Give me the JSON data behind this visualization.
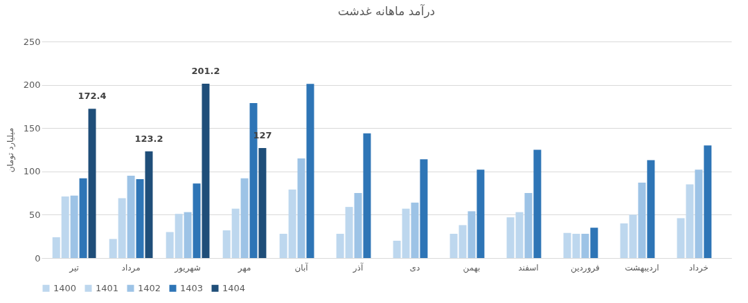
{
  "chart_data": {
    "type": "bar",
    "title": "درآمد ماهانه غدشت",
    "ylabel": "میلیارد تومان",
    "categories": [
      "تیر",
      "مرداد",
      "شهریور",
      "مهر",
      "آبان",
      "آذر",
      "دی",
      "بهمن",
      "اسفند",
      "فروردین",
      "اردیبهشت",
      "خرداد"
    ],
    "series": [
      {
        "name": "1400",
        "color": "#bdd7ee",
        "values": [
          24,
          22,
          30,
          32,
          28,
          28,
          20,
          28,
          47,
          29,
          40,
          46
        ]
      },
      {
        "name": "1401",
        "color": "#bdd7ee",
        "values": [
          71,
          69,
          51,
          57,
          79,
          59,
          57,
          38,
          53,
          28,
          50,
          85
        ]
      },
      {
        "name": "1402",
        "color": "#9dc3e6",
        "values": [
          72,
          95,
          53,
          92,
          115,
          75,
          64,
          54,
          75,
          28,
          87,
          102
        ]
      },
      {
        "name": "1403",
        "color": "#2e75b6",
        "values": [
          92,
          91,
          86,
          179,
          201,
          144,
          114,
          102,
          125,
          35,
          113,
          130
        ]
      },
      {
        "name": "1404",
        "color": "#1f4e79",
        "values": [
          172.4,
          123.2,
          201.2,
          127,
          null,
          null,
          null,
          null,
          null,
          null,
          null,
          null
        ],
        "value_labels": [
          "172.4",
          "123.2",
          "201.2",
          "127",
          null,
          null,
          null,
          null,
          null,
          null,
          null,
          null
        ]
      }
    ],
    "ylim": [
      0,
      250
    ],
    "yticks": [
      0,
      50,
      100,
      150,
      200,
      250
    ],
    "grid": "y",
    "legend": "bottom"
  }
}
